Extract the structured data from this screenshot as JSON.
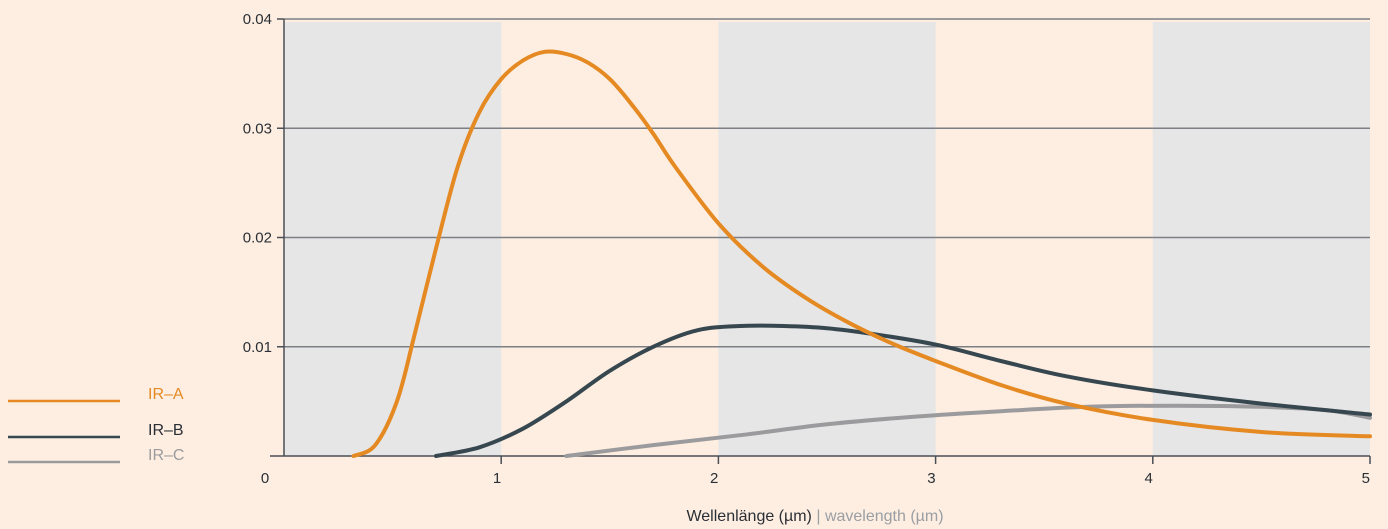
{
  "chart_data": {
    "type": "line",
    "xlabel_primary": "Wellenlänge (µm)",
    "xlabel_separator": " | ",
    "xlabel_secondary": "wavelength (µm)",
    "xlim": [
      0,
      5
    ],
    "ylim": [
      0,
      0.04
    ],
    "x_ticks": [
      "0",
      "1",
      "2",
      "3",
      "4",
      "5"
    ],
    "y_ticks": [
      "0.01",
      "0.02",
      "0.03",
      "0.04"
    ],
    "y_tick_values": [
      0.01,
      0.02,
      0.03,
      0.04
    ],
    "grid": "horizontal",
    "shaded_bands": [
      [
        0,
        1
      ],
      [
        2,
        3
      ],
      [
        4,
        5
      ]
    ],
    "legend_position": "left",
    "colors": {
      "background": "#fdeee1",
      "band": "#e6e6e7",
      "grid": "#7c7f83",
      "axis": "#4a4f55",
      "text": "#2a2f36",
      "secondary_text": "#9a9ea3"
    },
    "series": [
      {
        "name": "IR–A",
        "color": "#e58a23",
        "points": [
          [
            0.32,
            0
          ],
          [
            0.42,
            0.001
          ],
          [
            0.52,
            0.005
          ],
          [
            0.6,
            0.011
          ],
          [
            0.7,
            0.019
          ],
          [
            0.8,
            0.0265
          ],
          [
            0.9,
            0.0315
          ],
          [
            1.0,
            0.0345
          ],
          [
            1.1,
            0.0362
          ],
          [
            1.2,
            0.037
          ],
          [
            1.3,
            0.0368
          ],
          [
            1.4,
            0.036
          ],
          [
            1.5,
            0.0345
          ],
          [
            1.6,
            0.0322
          ],
          [
            1.7,
            0.0295
          ],
          [
            1.8,
            0.0265
          ],
          [
            2.0,
            0.0213
          ],
          [
            2.2,
            0.0174
          ],
          [
            2.4,
            0.0145
          ],
          [
            2.6,
            0.0122
          ],
          [
            2.8,
            0.0103
          ],
          [
            3.0,
            0.0087
          ],
          [
            3.3,
            0.0065
          ],
          [
            3.6,
            0.0048
          ],
          [
            4.0,
            0.0033
          ],
          [
            4.5,
            0.0022
          ],
          [
            5.0,
            0.0018
          ]
        ]
      },
      {
        "name": "IR–B",
        "color": "#37474f",
        "points": [
          [
            0.7,
            0
          ],
          [
            0.9,
            0.0008
          ],
          [
            1.1,
            0.0025
          ],
          [
            1.3,
            0.005
          ],
          [
            1.5,
            0.0078
          ],
          [
            1.7,
            0.01
          ],
          [
            1.9,
            0.0115
          ],
          [
            2.1,
            0.0119
          ],
          [
            2.3,
            0.0119
          ],
          [
            2.5,
            0.0117
          ],
          [
            2.7,
            0.0112
          ],
          [
            3.0,
            0.0102
          ],
          [
            3.3,
            0.0087
          ],
          [
            3.6,
            0.0073
          ],
          [
            4.0,
            0.006
          ],
          [
            4.5,
            0.0048
          ],
          [
            5.0,
            0.0038
          ]
        ]
      },
      {
        "name": "IR–C",
        "color": "#9b9b9d",
        "points": [
          [
            1.3,
            0
          ],
          [
            1.7,
            0.001
          ],
          [
            2.1,
            0.0019
          ],
          [
            2.5,
            0.0029
          ],
          [
            2.9,
            0.0036
          ],
          [
            3.3,
            0.0041
          ],
          [
            3.7,
            0.0045
          ],
          [
            4.1,
            0.0046
          ],
          [
            4.5,
            0.0045
          ],
          [
            4.8,
            0.0042
          ],
          [
            5.0,
            0.0035
          ]
        ]
      }
    ]
  }
}
